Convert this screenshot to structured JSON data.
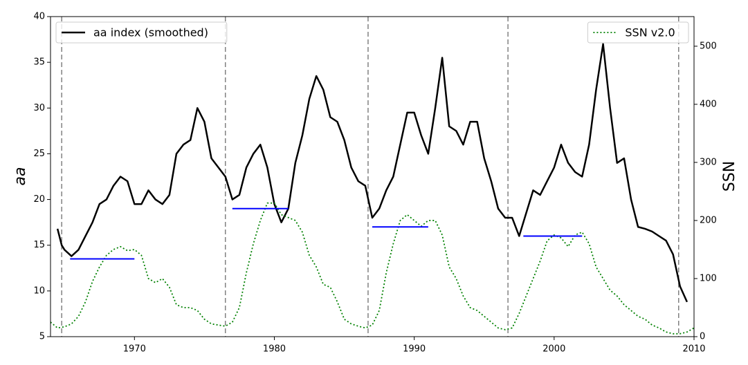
{
  "chart_data": {
    "type": "line",
    "ylabel": "aa",
    "y2label": "SSN",
    "xlim": [
      1964,
      2010
    ],
    "xticks": [
      1970,
      1980,
      1990,
      2000,
      2010
    ],
    "ylim": [
      5,
      40
    ],
    "yticks": [
      5,
      10,
      15,
      20,
      25,
      30,
      35,
      40
    ],
    "y2lim": [
      0,
      551
    ],
    "y2ticks": [
      0,
      100,
      200,
      300,
      400,
      500
    ],
    "grid": false,
    "series": [
      {
        "name": "aa index (smoothed)",
        "color": "#000000",
        "linestyle": "solid",
        "legend": "upper left",
        "x": [
          1964.5,
          1964.8,
          1965.0,
          1965.5,
          1966.0,
          1966.5,
          1967.0,
          1967.5,
          1968.0,
          1968.5,
          1969.0,
          1969.5,
          1970.0,
          1970.5,
          1971.0,
          1971.5,
          1972.0,
          1972.5,
          1973.0,
          1973.5,
          1974.0,
          1974.5,
          1975.0,
          1975.5,
          1976.0,
          1976.5,
          1977.0,
          1977.5,
          1978.0,
          1978.5,
          1979.0,
          1979.5,
          1980.0,
          1980.5,
          1981.0,
          1981.5,
          1982.0,
          1982.5,
          1983.0,
          1983.5,
          1984.0,
          1984.5,
          1985.0,
          1985.5,
          1986.0,
          1986.5,
          1987.0,
          1987.5,
          1988.0,
          1988.5,
          1989.0,
          1989.5,
          1990.0,
          1990.5,
          1991.0,
          1991.5,
          1992.0,
          1992.5,
          1993.0,
          1993.5,
          1994.0,
          1994.5,
          1995.0,
          1995.5,
          1996.0,
          1996.5,
          1997.0,
          1997.5,
          1998.0,
          1998.5,
          1999.0,
          1999.5,
          2000.0,
          2000.5,
          2001.0,
          2001.5,
          2002.0,
          2002.5,
          2003.0,
          2003.5,
          2004.0,
          2004.5,
          2005.0,
          2005.5,
          2006.0,
          2006.5,
          2007.0,
          2007.5,
          2008.0,
          2008.5,
          2009.0,
          2009.5
        ],
        "values": [
          16.8,
          15.0,
          14.5,
          13.8,
          14.5,
          16.0,
          17.5,
          19.5,
          20.0,
          21.5,
          22.5,
          22.0,
          19.5,
          19.5,
          21.0,
          20.0,
          19.5,
          20.5,
          25.0,
          26.0,
          26.5,
          30.0,
          28.5,
          24.5,
          23.5,
          22.5,
          20.0,
          20.5,
          23.5,
          25.0,
          26.0,
          23.5,
          19.5,
          17.5,
          19.0,
          24.0,
          27.0,
          31.0,
          33.5,
          32.0,
          29.0,
          28.5,
          26.5,
          23.5,
          22.0,
          21.5,
          18.0,
          19.0,
          21.0,
          22.5,
          26.0,
          29.5,
          29.5,
          27.0,
          25.0,
          30.0,
          35.5,
          28.0,
          27.5,
          26.0,
          28.5,
          28.5,
          24.5,
          22.0,
          19.0,
          18.0,
          18.0,
          16.0,
          18.5,
          21.0,
          20.5,
          22.0,
          23.5,
          26.0,
          24.0,
          23.0,
          22.5,
          26.0,
          32.0,
          37.0,
          30.0,
          24.0,
          24.5,
          20.0,
          17.0,
          16.8,
          16.5,
          16.0,
          15.5,
          14.0,
          10.5,
          8.8
        ]
      },
      {
        "name": "SSN v2.0",
        "color": "#008000",
        "linestyle": "dotted",
        "legend": "upper right",
        "axis": "y2",
        "x": [
          1964.0,
          1964.5,
          1965.0,
          1965.5,
          1966.0,
          1966.5,
          1967.0,
          1967.5,
          1968.0,
          1968.5,
          1969.0,
          1969.5,
          1970.0,
          1970.5,
          1971.0,
          1971.5,
          1972.0,
          1972.5,
          1973.0,
          1973.5,
          1974.0,
          1974.5,
          1975.0,
          1975.5,
          1976.0,
          1976.5,
          1977.0,
          1977.5,
          1978.0,
          1978.5,
          1979.0,
          1979.5,
          1980.0,
          1980.5,
          1981.0,
          1981.5,
          1982.0,
          1982.5,
          1983.0,
          1983.5,
          1984.0,
          1984.5,
          1985.0,
          1985.5,
          1986.0,
          1986.5,
          1987.0,
          1987.5,
          1988.0,
          1988.5,
          1989.0,
          1989.5,
          1990.0,
          1990.5,
          1991.0,
          1991.5,
          1992.0,
          1992.5,
          1993.0,
          1993.5,
          1994.0,
          1994.5,
          1995.0,
          1995.5,
          1996.0,
          1996.5,
          1997.0,
          1997.5,
          1998.0,
          1998.5,
          1999.0,
          1999.5,
          2000.0,
          2000.5,
          2001.0,
          2001.5,
          2002.0,
          2002.5,
          2003.0,
          2003.5,
          2004.0,
          2004.5,
          2005.0,
          2005.5,
          2006.0,
          2006.5,
          2007.0,
          2007.5,
          2008.0,
          2008.5,
          2009.0,
          2009.5,
          2010.0
        ],
        "values": [
          25,
          15,
          17,
          22,
          35,
          60,
          95,
          120,
          140,
          150,
          155,
          148,
          150,
          140,
          100,
          93,
          100,
          85,
          55,
          50,
          50,
          45,
          30,
          22,
          20,
          18,
          25,
          50,
          110,
          160,
          200,
          230,
          230,
          210,
          205,
          200,
          180,
          140,
          120,
          90,
          85,
          60,
          30,
          22,
          18,
          15,
          20,
          45,
          110,
          160,
          200,
          210,
          200,
          190,
          200,
          200,
          175,
          120,
          100,
          70,
          50,
          45,
          35,
          25,
          15,
          12,
          15,
          40,
          70,
          100,
          130,
          165,
          175,
          170,
          155,
          175,
          180,
          160,
          120,
          100,
          80,
          70,
          55,
          45,
          35,
          30,
          20,
          15,
          8,
          5,
          5,
          8,
          15
        ]
      }
    ],
    "vlines": {
      "color": "#808080",
      "linestyle": "dashed",
      "x": [
        1964.8,
        1976.5,
        1986.7,
        1996.7,
        2008.9
      ]
    },
    "hsegments": {
      "color": "#0000ff",
      "items": [
        {
          "x": [
            1965.4,
            1970.0
          ],
          "y": 13.5
        },
        {
          "x": [
            1977.0,
            1981.0
          ],
          "y": 19.0
        },
        {
          "x": [
            1987.0,
            1991.0
          ],
          "y": 17.0
        },
        {
          "x": [
            1997.8,
            2002.0
          ],
          "y": 16.0
        }
      ]
    }
  }
}
